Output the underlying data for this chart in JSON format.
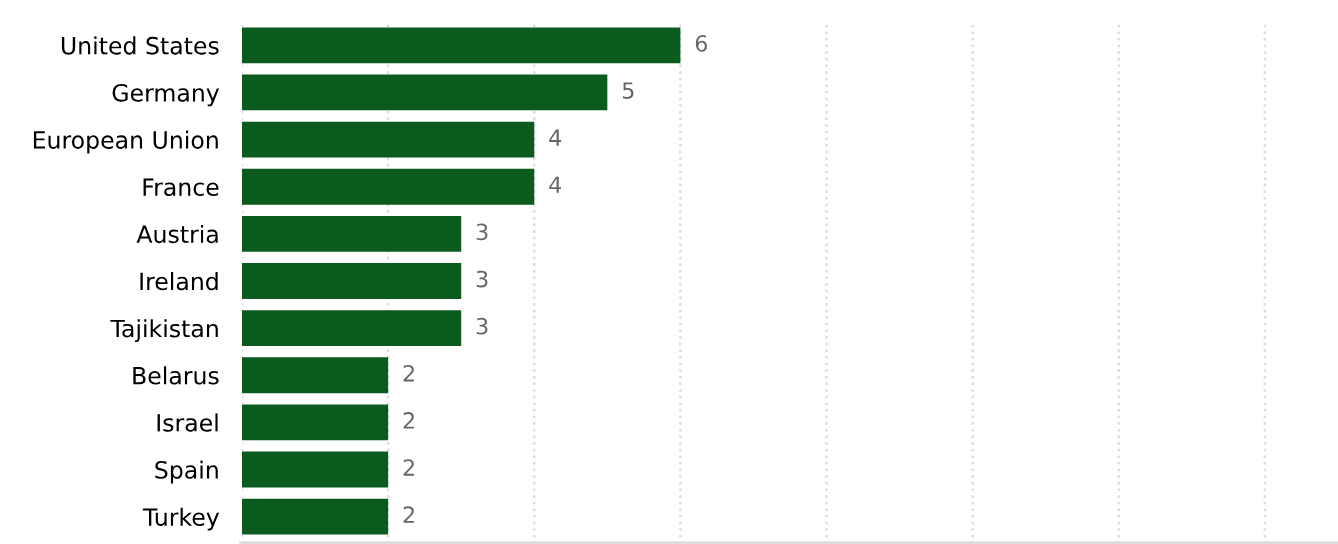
{
  "chart_data": {
    "type": "bar",
    "orientation": "horizontal",
    "categories": [
      "United States",
      "Germany",
      "European Union",
      "France",
      "Austria",
      "Ireland",
      "Tajikistan",
      "Belarus",
      "Israel",
      "Spain",
      "Turkey"
    ],
    "values": [
      6,
      5,
      4,
      4,
      3,
      3,
      3,
      2,
      2,
      2,
      2
    ],
    "color": "#0b5a1e",
    "xlim": [
      0,
      15
    ],
    "xticks": [
      {
        "value": 0,
        "label": null
      },
      {
        "value": 2,
        "label": null
      },
      {
        "value": 4,
        "label": null
      },
      {
        "value": 6,
        "label": null
      },
      {
        "value": 8,
        "label": null
      },
      {
        "value": 10,
        "label": null
      },
      {
        "value": 12,
        "label": null
      },
      {
        "value": 14,
        "label": null
      }
    ],
    "grid": "x",
    "tick_labels": "y",
    "data_labels": true
  }
}
